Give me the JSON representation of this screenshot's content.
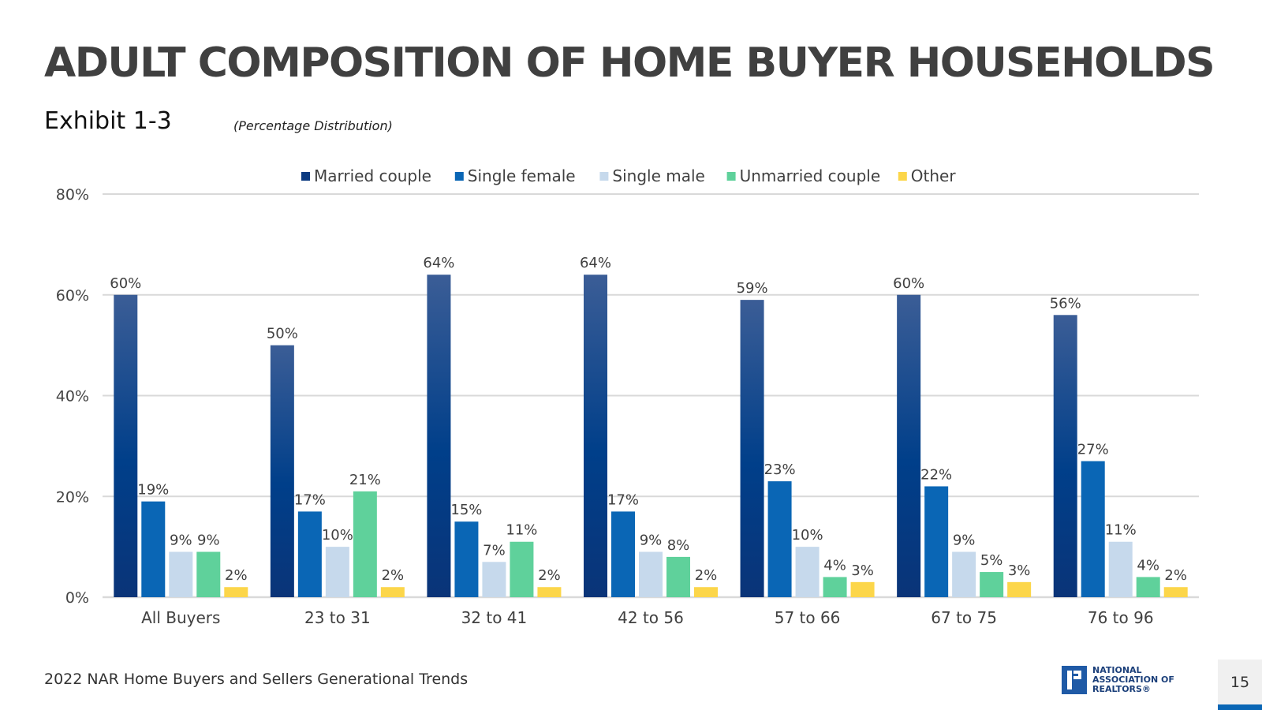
{
  "header": {
    "title": "ADULT COMPOSITION OF HOME BUYER HOUSEHOLDS",
    "exhibit": "Exhibit 1-3",
    "subtitle": "(Percentage Distribution)"
  },
  "footer": {
    "source": "2022 NAR Home Buyers and Sellers Generational Trends",
    "logo_lines": [
      "NATIONAL",
      "ASSOCIATION OF",
      "REALTORS®"
    ],
    "page_number": "15"
  },
  "chart_data": {
    "type": "bar",
    "categories": [
      "All Buyers",
      "23 to 31",
      "32 to 41",
      "42 to 56",
      "57 to 66",
      "67 to 75",
      "76 to 96"
    ],
    "series": [
      {
        "name": "Married couple",
        "color": "#0b3a80",
        "values": [
          60,
          50,
          64,
          64,
          59,
          60,
          56
        ]
      },
      {
        "name": "Single female",
        "color": "#0a66b5",
        "values": [
          19,
          17,
          15,
          17,
          23,
          22,
          27
        ]
      },
      {
        "name": "Single male",
        "color": "#c6d9ec",
        "values": [
          9,
          10,
          7,
          9,
          10,
          9,
          11
        ]
      },
      {
        "name": "Unmarried couple",
        "color": "#5fd19b",
        "values": [
          9,
          21,
          11,
          8,
          4,
          5,
          4
        ]
      },
      {
        "name": "Other",
        "color": "#fcd64a",
        "values": [
          2,
          2,
          2,
          2,
          3,
          3,
          2
        ]
      }
    ],
    "ylim": [
      0,
      80
    ],
    "yticks": [
      0,
      20,
      40,
      60,
      80
    ],
    "ytick_labels": [
      "0%",
      "20%",
      "40%",
      "60%",
      "80%"
    ],
    "value_suffix": "%",
    "legend_position": "top",
    "grid": true,
    "xlabel": "",
    "ylabel": ""
  }
}
